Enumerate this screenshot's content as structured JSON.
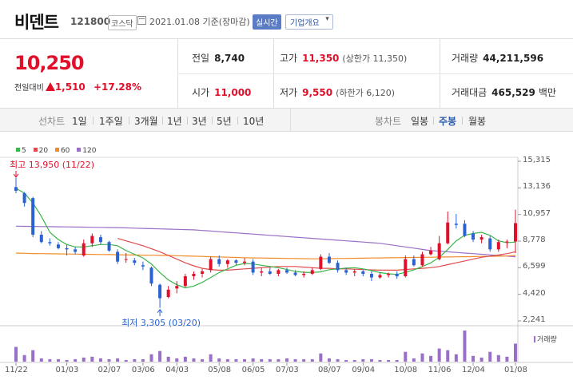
{
  "header": {
    "name": "비덴트",
    "code": "121800",
    "market": "코스닥",
    "date": "2021.01.08 기준(장마감)",
    "realtime_label": "실시간",
    "company_button": "기업개요",
    "chevron": "▾"
  },
  "summary": {
    "price": "10,250",
    "change_label": "전일대비",
    "change_amount": "1,510",
    "change_percent": "+17.28%",
    "prev_close_label": "전일",
    "prev_close": "8,740",
    "open_label": "시가",
    "open": "11,000",
    "high_label": "고가",
    "high": "11,350",
    "upper_limit": "(상한가 11,350)",
    "low_label": "저가",
    "low": "9,550",
    "lower_limit": "(하한가 6,120)",
    "volume_label": "거래량",
    "volume": "44,211,596",
    "value_label": "거래대금",
    "value": "465,529",
    "value_unit": "백만"
  },
  "periodbar": {
    "line_label": "선차트",
    "line_periods": [
      "1일",
      "1주일",
      "3개월",
      "1년",
      "3년",
      "5년",
      "10년"
    ],
    "candle_label": "봉차트",
    "candle_periods": [
      "일봉",
      "주봉",
      "월봉"
    ],
    "active_candle": "주봉"
  },
  "colors": {
    "up": "#e0102b",
    "down": "#2a63d1",
    "ma5": "#3ab54a",
    "ma20": "#e14b4b",
    "ma60": "#f28c28",
    "ma120": "#9a6fc7",
    "volume": "#9a6fc7"
  },
  "chart_data": {
    "type": "candlestick",
    "legend": [
      {
        "name": "5",
        "color": "#3ab54a"
      },
      {
        "name": "20",
        "color": "#e14b4b"
      },
      {
        "name": "60",
        "color": "#f28c28"
      },
      {
        "name": "120",
        "color": "#9a6fc7"
      }
    ],
    "y_ticks": [
      "15,315",
      "13,136",
      "10,957",
      "8,778",
      "6,599",
      "4,420",
      "2,241"
    ],
    "y_tick_values": [
      15315,
      13136,
      10957,
      8778,
      6599,
      4420,
      2241
    ],
    "ylim": [
      2241,
      15315
    ],
    "x_ticks": [
      "11/22",
      "01/03",
      "02/07",
      "03/06",
      "04/03",
      "05/08",
      "06/05",
      "07/03",
      "08/07",
      "09/04",
      "10/08",
      "11/06",
      "12/04",
      "01/08"
    ],
    "x_tick_index": [
      0,
      6,
      11,
      15,
      19,
      24,
      28,
      32,
      37,
      41,
      46,
      50,
      54,
      59
    ],
    "high_label": "최고 13,950 (11/22)",
    "low_label": "최저 3,305 (03/20)",
    "volume_label": "거래량",
    "candles": [
      {
        "o": 13200,
        "h": 13950,
        "l": 12700,
        "c": 12900
      },
      {
        "o": 12700,
        "h": 12800,
        "l": 11600,
        "c": 11900
      },
      {
        "o": 12300,
        "h": 12400,
        "l": 9100,
        "c": 9300
      },
      {
        "o": 9300,
        "h": 9600,
        "l": 8600,
        "c": 8700
      },
      {
        "o": 8700,
        "h": 9000,
        "l": 8400,
        "c": 8600
      },
      {
        "o": 8500,
        "h": 8700,
        "l": 8100,
        "c": 8200
      },
      {
        "o": 8200,
        "h": 8500,
        "l": 7600,
        "c": 8100
      },
      {
        "o": 8100,
        "h": 8300,
        "l": 7700,
        "c": 7900
      },
      {
        "o": 7600,
        "h": 8900,
        "l": 7500,
        "c": 8600
      },
      {
        "o": 8600,
        "h": 9400,
        "l": 8300,
        "c": 9200
      },
      {
        "o": 9100,
        "h": 9300,
        "l": 8500,
        "c": 8700
      },
      {
        "o": 8700,
        "h": 8800,
        "l": 7900,
        "c": 8000
      },
      {
        "o": 7900,
        "h": 8100,
        "l": 6900,
        "c": 7100
      },
      {
        "o": 7300,
        "h": 7800,
        "l": 7000,
        "c": 7300
      },
      {
        "o": 7200,
        "h": 7400,
        "l": 6800,
        "c": 7000
      },
      {
        "o": 6800,
        "h": 7100,
        "l": 6400,
        "c": 6700
      },
      {
        "o": 6600,
        "h": 6700,
        "l": 5100,
        "c": 5300
      },
      {
        "o": 5200,
        "h": 5300,
        "l": 3305,
        "c": 4100
      },
      {
        "o": 4200,
        "h": 5100,
        "l": 4100,
        "c": 4800
      },
      {
        "o": 4900,
        "h": 5500,
        "l": 4500,
        "c": 5100
      },
      {
        "o": 5100,
        "h": 6100,
        "l": 5000,
        "c": 5900
      },
      {
        "o": 5900,
        "h": 6300,
        "l": 5600,
        "c": 6100
      },
      {
        "o": 6100,
        "h": 6500,
        "l": 5800,
        "c": 6300
      },
      {
        "o": 6400,
        "h": 7500,
        "l": 6200,
        "c": 7300
      },
      {
        "o": 7300,
        "h": 7600,
        "l": 6700,
        "c": 6900
      },
      {
        "o": 6900,
        "h": 7300,
        "l": 6600,
        "c": 7200
      },
      {
        "o": 7200,
        "h": 7300,
        "l": 6800,
        "c": 7000
      },
      {
        "o": 7000,
        "h": 7400,
        "l": 6800,
        "c": 7100
      },
      {
        "o": 7100,
        "h": 7300,
        "l": 6000,
        "c": 6200
      },
      {
        "o": 6200,
        "h": 6600,
        "l": 5900,
        "c": 6300
      },
      {
        "o": 6300,
        "h": 6600,
        "l": 6000,
        "c": 6100
      },
      {
        "o": 6100,
        "h": 6500,
        "l": 5900,
        "c": 6400
      },
      {
        "o": 6400,
        "h": 6600,
        "l": 6100,
        "c": 6200
      },
      {
        "o": 6200,
        "h": 6400,
        "l": 5900,
        "c": 6000
      },
      {
        "o": 6000,
        "h": 6300,
        "l": 5800,
        "c": 6100
      },
      {
        "o": 6100,
        "h": 6600,
        "l": 6000,
        "c": 6400
      },
      {
        "o": 6500,
        "h": 7700,
        "l": 6400,
        "c": 7500
      },
      {
        "o": 7500,
        "h": 7800,
        "l": 6900,
        "c": 7000
      },
      {
        "o": 7000,
        "h": 7200,
        "l": 6200,
        "c": 6400
      },
      {
        "o": 6400,
        "h": 6600,
        "l": 6000,
        "c": 6200
      },
      {
        "o": 6200,
        "h": 6500,
        "l": 5900,
        "c": 6300
      },
      {
        "o": 6300,
        "h": 6400,
        "l": 5900,
        "c": 6100
      },
      {
        "o": 6100,
        "h": 6300,
        "l": 5500,
        "c": 5800
      },
      {
        "o": 5800,
        "h": 6200,
        "l": 5700,
        "c": 6000
      },
      {
        "o": 6000,
        "h": 6200,
        "l": 5800,
        "c": 6100
      },
      {
        "o": 6100,
        "h": 6300,
        "l": 5700,
        "c": 5900
      },
      {
        "o": 5900,
        "h": 7600,
        "l": 5800,
        "c": 7300
      },
      {
        "o": 7300,
        "h": 7600,
        "l": 6700,
        "c": 6800
      },
      {
        "o": 6800,
        "h": 7900,
        "l": 6700,
        "c": 7700
      },
      {
        "o": 7700,
        "h": 8300,
        "l": 7600,
        "c": 8000
      },
      {
        "o": 7300,
        "h": 9200,
        "l": 7200,
        "c": 8600
      },
      {
        "o": 8600,
        "h": 11200,
        "l": 8500,
        "c": 10300
      },
      {
        "o": 10200,
        "h": 11000,
        "l": 9800,
        "c": 10100
      },
      {
        "o": 10200,
        "h": 10500,
        "l": 9100,
        "c": 9200
      },
      {
        "o": 9400,
        "h": 9600,
        "l": 8700,
        "c": 8900
      },
      {
        "o": 8900,
        "h": 9300,
        "l": 8600,
        "c": 9100
      },
      {
        "o": 9000,
        "h": 9200,
        "l": 7900,
        "c": 8100
      },
      {
        "o": 8100,
        "h": 8900,
        "l": 7900,
        "c": 8700
      },
      {
        "o": 8700,
        "h": 8900,
        "l": 8200,
        "c": 8740
      },
      {
        "o": 8740,
        "h": 11350,
        "l": 7800,
        "c": 10250
      }
    ],
    "volume": [
      18,
      8,
      14,
      4,
      3,
      3,
      2,
      3,
      5,
      6,
      4,
      3,
      4,
      2,
      3,
      3,
      9,
      13,
      6,
      4,
      6,
      4,
      3,
      9,
      4,
      3,
      3,
      3,
      4,
      3,
      3,
      3,
      4,
      3,
      3,
      3,
      10,
      4,
      3,
      2,
      2,
      3,
      3,
      2,
      2,
      2,
      12,
      4,
      10,
      7,
      16,
      14,
      9,
      38,
      7,
      5,
      12,
      8,
      6,
      22
    ],
    "ma5": [
      13100,
      12700,
      11900,
      10800,
      9500,
      8900,
      8500,
      8300,
      8300,
      8400,
      8500,
      8500,
      8400,
      8000,
      7700,
      7400,
      6900,
      6200,
      5600,
      5200,
      4950,
      5100,
      5400,
      5800,
      6200,
      6500,
      6800,
      6950,
      6900,
      6800,
      6700,
      6600,
      6450,
      6300,
      6220,
      6200,
      6260,
      6440,
      6500,
      6560,
      6600,
      6500,
      6360,
      6200,
      6100,
      6050,
      6220,
      6420,
      6700,
      7000,
      7450,
      8100,
      8800,
      9250,
      9400,
      9500,
      9250,
      8800,
      8650,
      8700
    ],
    "ma20": [
      null,
      null,
      null,
      null,
      null,
      null,
      null,
      null,
      null,
      null,
      null,
      null,
      9000,
      8800,
      8600,
      8400,
      8150,
      7900,
      7600,
      7300,
      7000,
      6750,
      6550,
      6450,
      6400,
      6400,
      6450,
      6500,
      6550,
      6600,
      6650,
      6700,
      6700,
      6700,
      6650,
      6600,
      6550,
      6550,
      6500,
      6500,
      6480,
      6450,
      6420,
      6400,
      6400,
      6400,
      6450,
      6500,
      6550,
      6600,
      6700,
      6850,
      7000,
      7150,
      7300,
      7450,
      7550,
      7650,
      7750,
      7900
    ],
    "ma60": [
      7800,
      7780,
      7760,
      7750,
      7740,
      7730,
      7720,
      7710,
      7700,
      7690,
      7680,
      7670,
      7660,
      7650,
      7640,
      7630,
      7620,
      7610,
      7600,
      7580,
      7560,
      7540,
      7520,
      7500,
      7480,
      7460,
      7440,
      7420,
      7400,
      7390,
      7380,
      7370,
      7360,
      7350,
      7340,
      7330,
      7330,
      7340,
      7350,
      7360,
      7370,
      7380,
      7390,
      7400,
      7410,
      7420,
      7430,
      7440,
      7450,
      7460,
      7470,
      7480,
      7490,
      7500,
      7510,
      7520,
      7530,
      7540,
      7560,
      7600
    ],
    "ma120": [
      10000,
      9990,
      9980,
      9970,
      9960,
      9950,
      9940,
      9930,
      9920,
      9910,
      9900,
      9890,
      9880,
      9860,
      9840,
      9820,
      9800,
      9780,
      9760,
      9740,
      9720,
      9700,
      9650,
      9600,
      9550,
      9500,
      9450,
      9400,
      9350,
      9300,
      9250,
      9200,
      9150,
      9100,
      9050,
      9000,
      8950,
      8900,
      8850,
      8800,
      8750,
      8700,
      8650,
      8600,
      8500,
      8400,
      8300,
      8200,
      8100,
      8000,
      7950,
      7900,
      7850,
      7800,
      7750,
      7700,
      7650,
      7600,
      7550,
      7500
    ]
  }
}
